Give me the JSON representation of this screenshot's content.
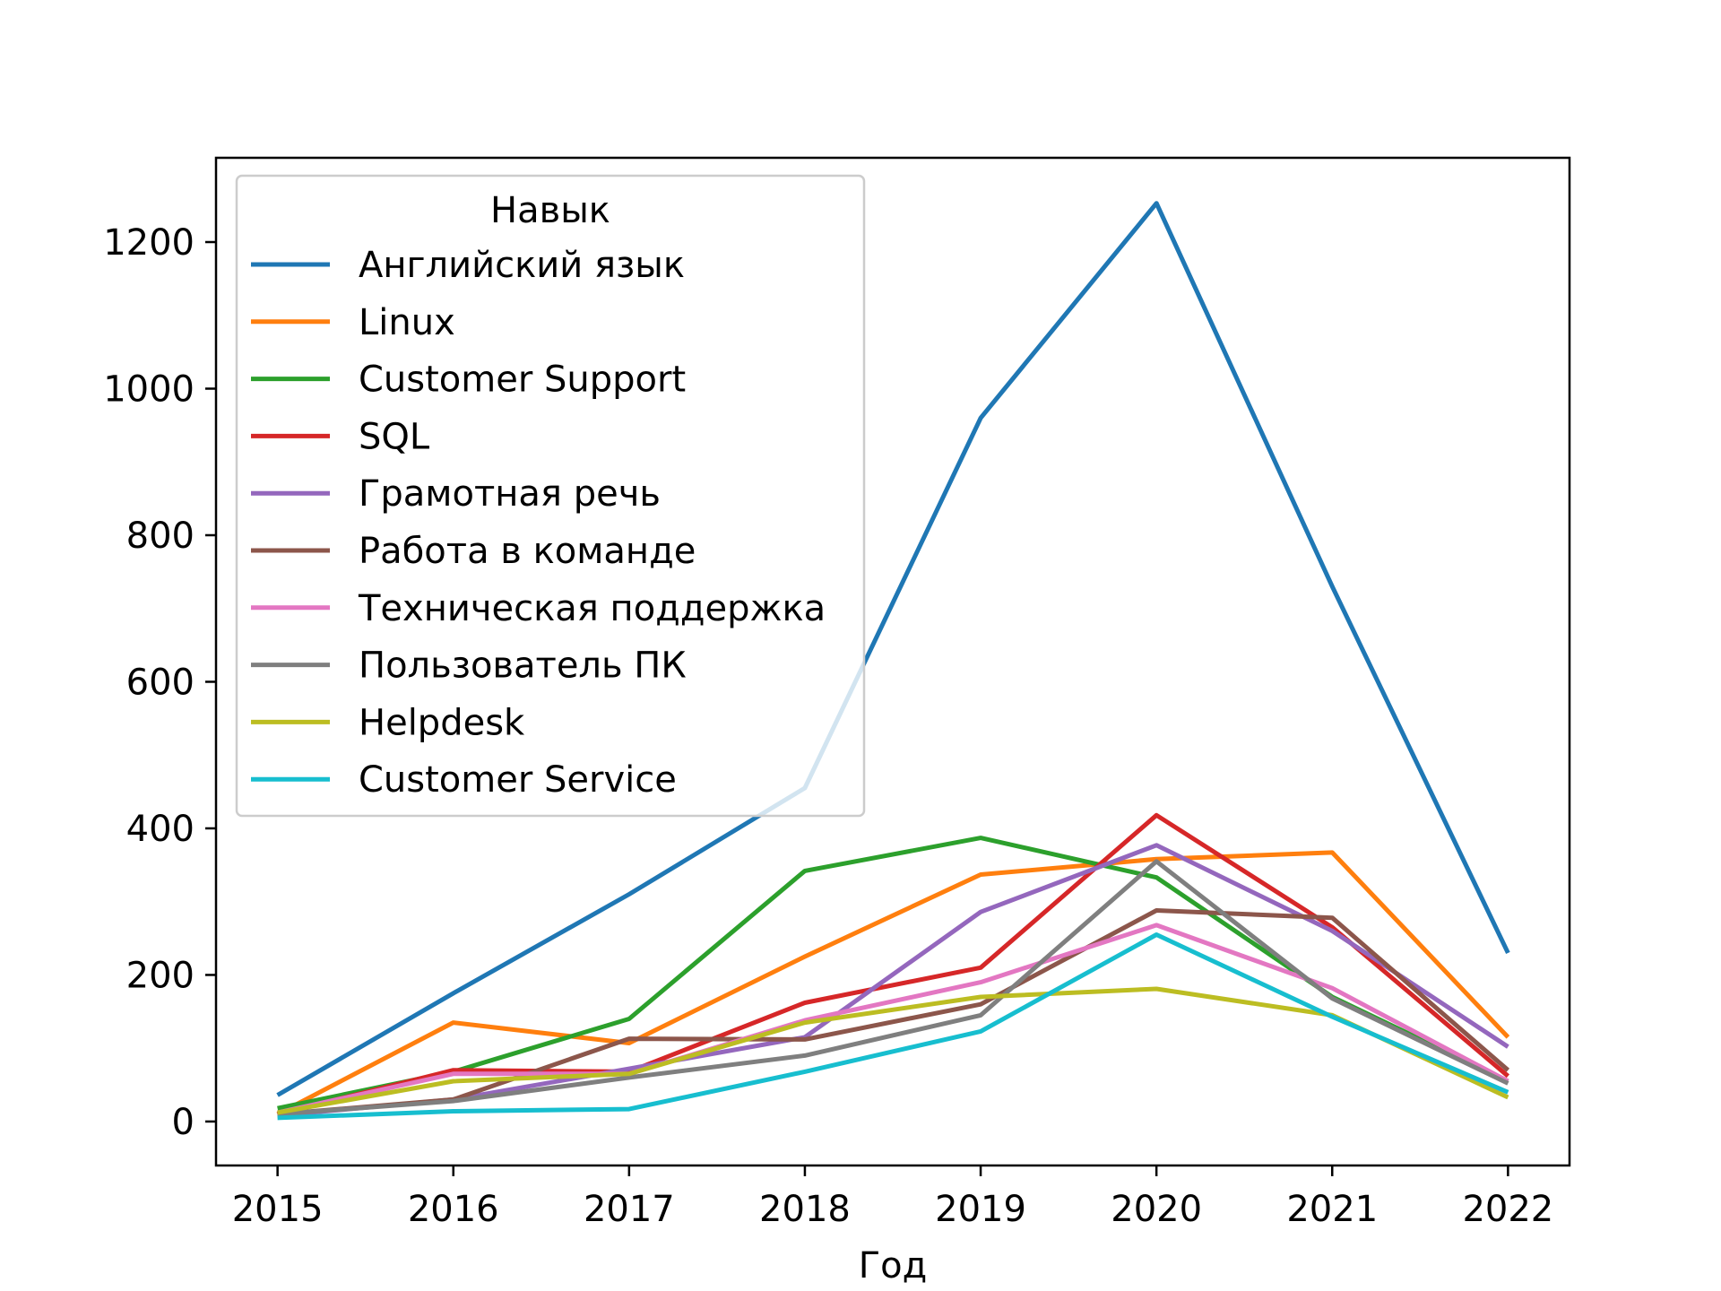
{
  "chart_data": {
    "type": "line",
    "xlabel": "Год",
    "ylabel": "",
    "x": [
      2015,
      2016,
      2017,
      2018,
      2019,
      2020,
      2021,
      2022
    ],
    "xticks": [
      "2015",
      "2016",
      "2017",
      "2018",
      "2019",
      "2020",
      "2021",
      "2022"
    ],
    "yticks": [
      "0",
      "200",
      "400",
      "600",
      "800",
      "1000",
      "1200"
    ],
    "ylim": [
      -60,
      1315
    ],
    "xlim": [
      2014.65,
      2022.35
    ],
    "grid": false,
    "legend": {
      "title": "Навык",
      "placement": "top-left"
    },
    "series": [
      {
        "name": "Английский язык",
        "color": "#1f77b4",
        "values": [
          36,
          175,
          310,
          455,
          960,
          1253,
          730,
          230
        ]
      },
      {
        "name": "Linux",
        "color": "#ff7f0e",
        "values": [
          10,
          135,
          107,
          225,
          337,
          358,
          367,
          115
        ]
      },
      {
        "name": "Customer Support",
        "color": "#2ca02c",
        "values": [
          18,
          68,
          140,
          342,
          387,
          333,
          170,
          55
        ]
      },
      {
        "name": "SQL",
        "color": "#d62728",
        "values": [
          10,
          70,
          68,
          162,
          210,
          418,
          265,
          62
        ]
      },
      {
        "name": "Грамотная речь",
        "color": "#9467bd",
        "values": [
          8,
          30,
          72,
          115,
          286,
          377,
          260,
          102
        ]
      },
      {
        "name": "Работа в команде",
        "color": "#8c564b",
        "values": [
          10,
          30,
          113,
          112,
          160,
          288,
          278,
          70
        ]
      },
      {
        "name": "Техническая поддержка",
        "color": "#e377c2",
        "values": [
          12,
          65,
          65,
          138,
          190,
          268,
          182,
          55
        ]
      },
      {
        "name": "Пользователь ПК",
        "color": "#7f7f7f",
        "values": [
          10,
          28,
          60,
          90,
          145,
          355,
          168,
          52
        ]
      },
      {
        "name": "Helpdesk",
        "color": "#bcbd22",
        "values": [
          12,
          55,
          65,
          135,
          170,
          181,
          145,
          33
        ]
      },
      {
        "name": "Customer Service",
        "color": "#17becf",
        "values": [
          5,
          14,
          17,
          68,
          123,
          255,
          143,
          40
        ]
      }
    ]
  }
}
